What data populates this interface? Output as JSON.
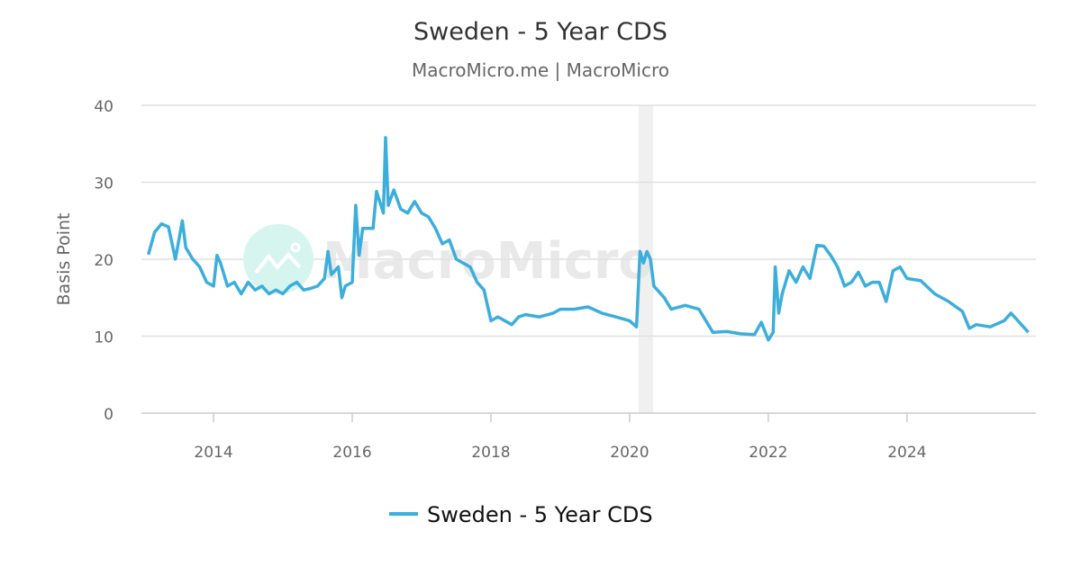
{
  "chart_data": {
    "type": "line",
    "title": "Sweden - 5 Year CDS",
    "subtitle": "MacroMicro.me | MacroMicro",
    "xlabel": "",
    "ylabel": "Basis Point",
    "xlim": [
      2012.96,
      2025.86
    ],
    "ylim": [
      0,
      40
    ],
    "yticks": [
      0,
      10,
      20,
      30,
      40
    ],
    "xticks": [
      2014,
      2016,
      2018,
      2020,
      2022,
      2024
    ],
    "grid": true,
    "legend_position": "bottom",
    "watermark": "MacroMicro",
    "shaded_band": [
      2020.13,
      2020.34
    ],
    "colors": {
      "series": "#3caedb",
      "grid": "#e0e0e0",
      "band": "#f0f0f0",
      "watermark_circle": "#d6f5ee"
    },
    "series": [
      {
        "name": "Sweden - 5 Year CDS",
        "x": [
          2013.06,
          2013.15,
          2013.25,
          2013.35,
          2013.45,
          2013.55,
          2013.6,
          2013.7,
          2013.8,
          2013.9,
          2014.0,
          2014.05,
          2014.1,
          2014.2,
          2014.3,
          2014.4,
          2014.5,
          2014.6,
          2014.7,
          2014.8,
          2014.9,
          2015.0,
          2015.1,
          2015.2,
          2015.3,
          2015.4,
          2015.5,
          2015.6,
          2015.65,
          2015.7,
          2015.8,
          2015.85,
          2015.9,
          2016.0,
          2016.05,
          2016.1,
          2016.15,
          2016.3,
          2016.35,
          2016.45,
          2016.48,
          2016.52,
          2016.6,
          2016.7,
          2016.8,
          2016.9,
          2017.0,
          2017.1,
          2017.2,
          2017.3,
          2017.4,
          2017.5,
          2017.6,
          2017.7,
          2017.8,
          2017.9,
          2018.0,
          2018.1,
          2018.3,
          2018.4,
          2018.5,
          2018.7,
          2018.9,
          2019.0,
          2019.2,
          2019.4,
          2019.6,
          2019.8,
          2020.0,
          2020.1,
          2020.15,
          2020.2,
          2020.25,
          2020.3,
          2020.35,
          2020.5,
          2020.6,
          2020.8,
          2021.0,
          2021.1,
          2021.2,
          2021.4,
          2021.6,
          2021.8,
          2021.9,
          2022.0,
          2022.07,
          2022.1,
          2022.15,
          2022.2,
          2022.3,
          2022.4,
          2022.5,
          2022.6,
          2022.7,
          2022.8,
          2022.9,
          2023.0,
          2023.1,
          2023.2,
          2023.3,
          2023.4,
          2023.5,
          2023.6,
          2023.7,
          2023.8,
          2023.9,
          2024.0,
          2024.2,
          2024.4,
          2024.6,
          2024.8,
          2024.9,
          2025.0,
          2025.2,
          2025.4,
          2025.5,
          2025.6,
          2025.75
        ],
        "y": [
          20.6,
          23.5,
          24.6,
          24.2,
          20.0,
          25.0,
          21.5,
          20.0,
          19.0,
          17.0,
          16.5,
          20.5,
          19.5,
          16.5,
          17.0,
          15.5,
          17.0,
          16.0,
          16.5,
          15.5,
          16.0,
          15.5,
          16.5,
          17.0,
          16.0,
          16.2,
          16.5,
          17.5,
          21.0,
          18.0,
          19.0,
          15.0,
          16.5,
          17.0,
          27.0,
          20.5,
          24.0,
          24.0,
          28.8,
          26.0,
          35.8,
          27.0,
          29.0,
          26.5,
          26.0,
          27.5,
          26.0,
          25.5,
          24.0,
          22.0,
          22.5,
          20.0,
          19.5,
          19.0,
          17.0,
          16.0,
          12.0,
          12.5,
          11.5,
          12.5,
          12.8,
          12.5,
          13.0,
          13.5,
          13.5,
          13.8,
          13.0,
          12.5,
          12.0,
          11.2,
          21.0,
          19.5,
          21.0,
          20.0,
          16.5,
          15.0,
          13.5,
          14.0,
          13.5,
          12.0,
          10.5,
          10.6,
          10.3,
          10.2,
          11.8,
          9.5,
          10.5,
          19.0,
          13.0,
          15.5,
          18.5,
          17.0,
          19.0,
          17.5,
          21.8,
          21.7,
          20.5,
          19.0,
          16.5,
          17.0,
          18.3,
          16.5,
          17.0,
          17.0,
          14.5,
          18.5,
          19.0,
          17.5,
          17.2,
          15.5,
          14.5,
          13.2,
          11.0,
          11.5,
          11.2,
          12.0,
          13.0,
          12.0,
          10.5
        ]
      }
    ]
  }
}
